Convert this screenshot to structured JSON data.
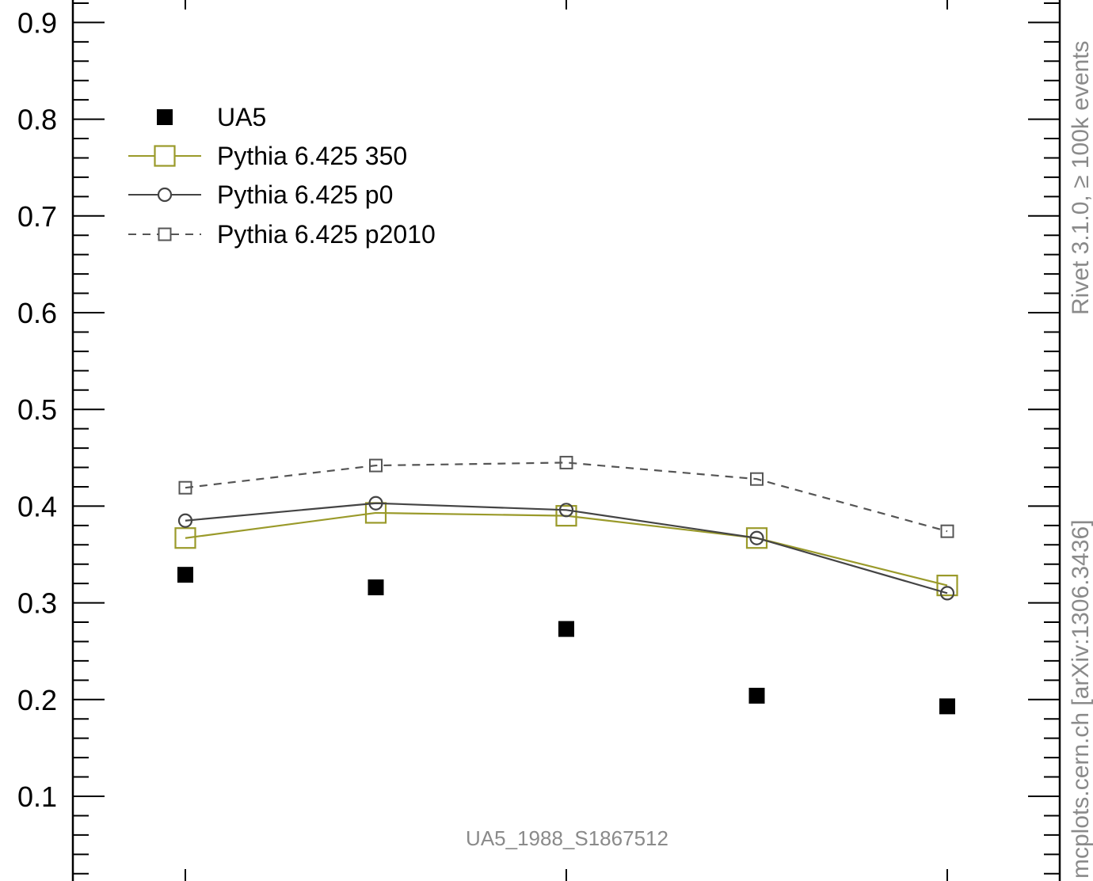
{
  "chart_data": {
    "type": "scatter",
    "title": "",
    "xlabel": "",
    "ylabel": "",
    "xlim": [
      0.5,
      5.5
    ],
    "ylim": [
      0.02,
      0.92
    ],
    "x": [
      1,
      2,
      3,
      4,
      5
    ],
    "y_ticks": [
      0.1,
      0.2,
      0.3,
      0.4,
      0.5,
      0.6,
      0.7,
      0.8,
      0.9
    ],
    "y_tick_labels": [
      "0.1",
      "0.2",
      "0.3",
      "0.4",
      "0.5",
      "0.6",
      "0.7",
      "0.8",
      "0.9"
    ],
    "legend_position": "top-left",
    "grid": false,
    "series": [
      {
        "name": "UA5",
        "style": "filled-square",
        "color": "#000000",
        "values": [
          0.329,
          0.316,
          0.273,
          0.204,
          0.193
        ]
      },
      {
        "name": "Pythia 6.425 350",
        "style": "line-open-square",
        "color": "#9a9a2a",
        "values": [
          0.367,
          0.393,
          0.39,
          0.367,
          0.318
        ]
      },
      {
        "name": "Pythia 6.425 p0",
        "style": "line-open-circle",
        "color": "#444444",
        "values": [
          0.385,
          0.403,
          0.396,
          0.367,
          0.31
        ]
      },
      {
        "name": "Pythia 6.425 p2010",
        "style": "dashed-open-square",
        "color": "#555555",
        "values": [
          0.419,
          0.442,
          0.445,
          0.428,
          0.374
        ]
      }
    ],
    "annotations": {
      "analysis_id": "UA5_1988_S1867512",
      "side_top": "Rivet 3.1.0, ≥ 100k events",
      "side_bottom": "mcplots.cern.ch [arXiv:1306.3436]"
    }
  }
}
